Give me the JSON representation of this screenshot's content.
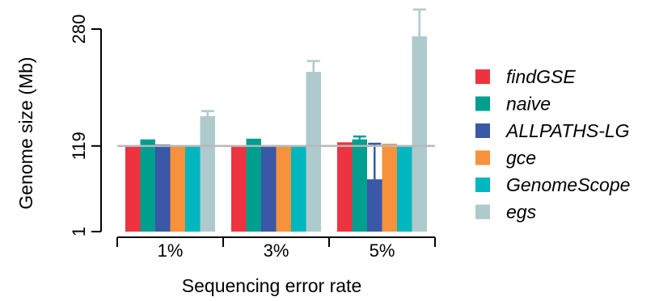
{
  "chart_data": {
    "type": "bar",
    "title": "",
    "xlabel": "Sequencing error rate",
    "ylabel": "Genome size (Mb)",
    "categories": [
      "1%",
      "3%",
      "5%"
    ],
    "yticks": [
      1,
      119,
      280
    ],
    "ylim": [
      1,
      300
    ],
    "reference_line": 119,
    "grid": false,
    "legend_position": "right",
    "series": [
      {
        "name": "findGSE",
        "color": "#ee3340",
        "values": [
          119,
          119,
          124
        ],
        "errors": [
          null,
          null,
          null
        ]
      },
      {
        "name": "naive",
        "color": "#009e8f",
        "values": [
          128,
          129,
          128
        ],
        "errors": [
          null,
          null,
          4
        ]
      },
      {
        "name": "ALLPATHS-LG",
        "color": "#3a57a8",
        "values": [
          121,
          120,
          73
        ],
        "errors": [
          null,
          null,
          49
        ]
      },
      {
        "name": "gce",
        "color": "#f7913b",
        "values": [
          119,
          119,
          122
        ],
        "errors": [
          null,
          null,
          null
        ]
      },
      {
        "name": "GenomeScope",
        "color": "#00b6bf",
        "values": [
          119,
          119,
          119
        ],
        "errors": [
          null,
          null,
          null
        ]
      },
      {
        "name": "egs",
        "color": "#aecacc",
        "values": [
          160,
          221,
          270
        ],
        "errors": [
          7,
          15,
          37
        ]
      }
    ]
  }
}
